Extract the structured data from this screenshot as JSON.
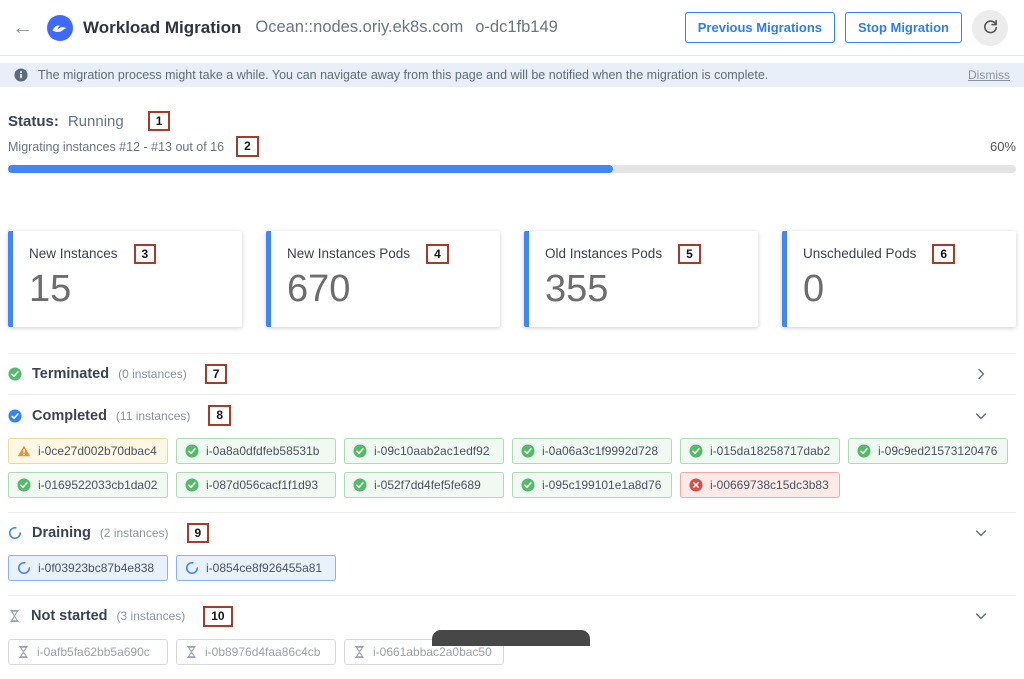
{
  "header": {
    "back_glyph": "←",
    "logo_icon": "ocean-wave-logo",
    "title": "Workload Migration",
    "cluster": "Ocean::nodes.oriy.ek8s.com",
    "ocean_id": "o-dc1fb149",
    "previous_button": "Previous Migrations",
    "stop_button": "Stop Migration",
    "refresh_icon": "refresh-arrow"
  },
  "banner": {
    "icon": "info-circle",
    "text": "The migration process might take a while. You can navigate away from this page and will be notified when the migration is complete.",
    "dismiss": "Dismiss"
  },
  "status": {
    "label": "Status:",
    "value": "Running",
    "annotation": "1",
    "progress_text": "Migrating instances #12 - #13 out of 16",
    "progress_annotation": "2",
    "progress_percent_label": "60%",
    "progress_value": 60
  },
  "cards": [
    {
      "label": "New Instances",
      "annotation": "3",
      "value": "15"
    },
    {
      "label": "New Instances Pods",
      "annotation": "4",
      "value": "670"
    },
    {
      "label": "Old Instances Pods",
      "annotation": "5",
      "value": "355"
    },
    {
      "label": "Unscheduled Pods",
      "annotation": "6",
      "value": "0"
    }
  ],
  "sections": [
    {
      "title": "Terminated",
      "count_label": "(0 instances)",
      "annotation": "7",
      "icon": "check-circle-green",
      "expanded": false,
      "chips": []
    },
    {
      "title": "Completed",
      "count_label": "(11 instances)",
      "annotation": "8",
      "icon": "check-circle-blue",
      "expanded": true,
      "chips": [
        {
          "id": "i-0ce27d002b70dbac4",
          "status": "warning",
          "icon": "warning-triangle"
        },
        {
          "id": "i-0a8a0dfdfeb58531b",
          "status": "success",
          "icon": "check-circle-green"
        },
        {
          "id": "i-09c10aab2ac1edf92",
          "status": "success",
          "icon": "check-circle-green"
        },
        {
          "id": "i-0a06a3c1f9992d728",
          "status": "success",
          "icon": "check-circle-green"
        },
        {
          "id": "i-015da18258717dab2",
          "status": "success",
          "icon": "check-circle-green"
        },
        {
          "id": "i-09c9ed21573120476",
          "status": "success",
          "icon": "check-circle-green"
        },
        {
          "id": "i-0169522033cb1da02",
          "status": "success",
          "icon": "check-circle-green"
        },
        {
          "id": "i-087d056cacf1f1d93",
          "status": "success",
          "icon": "check-circle-green"
        },
        {
          "id": "i-052f7dd4fef5fe689",
          "status": "success",
          "icon": "check-circle-green"
        },
        {
          "id": "i-095c199101e1a8d76",
          "status": "success",
          "icon": "check-circle-green"
        },
        {
          "id": "i-00669738c15dc3b83",
          "status": "error",
          "icon": "x-circle-red"
        }
      ]
    },
    {
      "title": "Draining",
      "count_label": "(2 instances)",
      "annotation": "9",
      "icon": "spinner-circle",
      "expanded": true,
      "chips": [
        {
          "id": "i-0f03923bc87b4e838",
          "status": "draining",
          "icon": "spinner-circle"
        },
        {
          "id": "i-0854ce8f926455a81",
          "status": "draining",
          "icon": "spinner-circle"
        }
      ]
    },
    {
      "title": "Not started",
      "count_label": "(3 instances)",
      "annotation": "10",
      "icon": "hourglass",
      "expanded": true,
      "chips": [
        {
          "id": "i-0afb5fa62bb5a690c",
          "status": "notstarted",
          "icon": "hourglass"
        },
        {
          "id": "i-0b8976d4faa86c4cb",
          "status": "notstarted",
          "icon": "hourglass"
        },
        {
          "id": "i-0661abbac2a0bac50",
          "status": "notstarted",
          "icon": "hourglass"
        }
      ]
    }
  ],
  "colors": {
    "accent_blue": "#3584f7",
    "progress_blue": "#4285f4",
    "success_green": "#57b96b",
    "error_red": "#d6504a",
    "warning_orange": "#e2953f",
    "neutral_gray": "#9aa1ab",
    "annotation_red": "#a63a2b",
    "banner_blue": "#e9eff9"
  }
}
